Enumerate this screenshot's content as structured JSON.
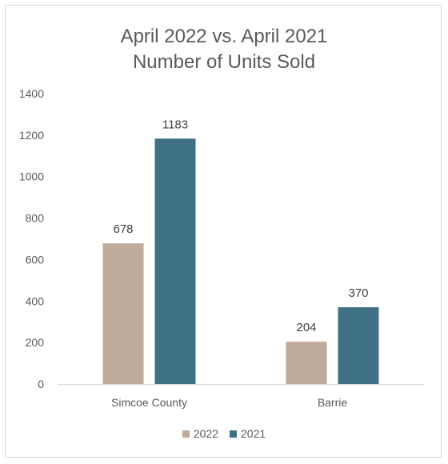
{
  "chart_data": {
    "type": "bar",
    "title_lines": [
      "April 2022 vs. April 2021",
      "Number of Units Sold"
    ],
    "categories": [
      "Simcoe County",
      "Barrie"
    ],
    "series": [
      {
        "name": "2022",
        "color": "#bfaa9b",
        "values": [
          678,
          204
        ]
      },
      {
        "name": "2021",
        "color": "#3f7086",
        "values": [
          1183,
          370
        ]
      }
    ],
    "ylim": [
      0,
      1400
    ],
    "yticks": [
      "0",
      "200",
      "400",
      "600",
      "800",
      "1000",
      "1200",
      "1400"
    ],
    "ytick_values": [
      0,
      200,
      400,
      600,
      800,
      1000,
      1200,
      1400
    ],
    "grid": false,
    "legend_position": "bottom"
  }
}
